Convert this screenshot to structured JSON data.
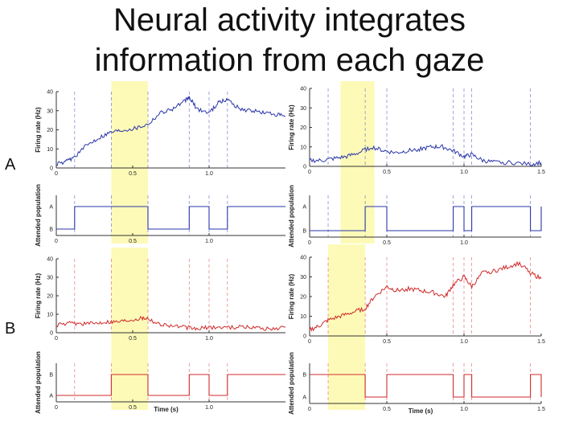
{
  "slide": {
    "title_line1": "Neural activity integrates",
    "title_line2": "information from each gaze",
    "row_labels": [
      "A",
      "B"
    ]
  },
  "colors": {
    "blue": "#2a35a8",
    "red": "#d02a2a",
    "highlight": "#fdfab8",
    "axis": "#333333"
  },
  "chart_data": [
    {
      "id": "A-left-rate",
      "type": "line",
      "series_color": "blue",
      "ylabel": "Firing rate (Hz)",
      "xlabel": "",
      "xlim": [
        0,
        1.5
      ],
      "ylim": [
        0,
        40
      ],
      "xticks": [
        "0",
        "0.5",
        "1.0"
      ],
      "xtick_values": [
        0,
        0.5,
        1.0
      ],
      "yticks": [
        "0",
        "10",
        "20",
        "30",
        "40"
      ],
      "ytick_values": [
        0,
        10,
        20,
        30,
        40
      ],
      "markers": [
        0.12,
        0.36,
        0.6,
        0.87,
        1.0,
        1.12
      ],
      "highlight": [
        0.36,
        0.6
      ],
      "series": [
        {
          "name": "rate",
          "x": [
            0.0,
            0.06,
            0.12,
            0.2,
            0.28,
            0.36,
            0.44,
            0.52,
            0.6,
            0.68,
            0.76,
            0.84,
            0.87,
            0.92,
            1.0,
            1.06,
            1.12,
            1.2,
            1.28,
            1.36,
            1.44,
            1.5
          ],
          "y": [
            2,
            3,
            6,
            12,
            16,
            19,
            20,
            21,
            23,
            29,
            31,
            35,
            37,
            31,
            29,
            34,
            36,
            31,
            30,
            29,
            28,
            27
          ]
        }
      ]
    },
    {
      "id": "A-left-pop",
      "type": "step",
      "series_color": "blue",
      "ylabel": "Attended population",
      "xlabel": "",
      "xlim": [
        0,
        1.5
      ],
      "yticks": [
        "A",
        "B"
      ],
      "xticks": [
        "0",
        "0.5",
        "1.0"
      ],
      "xtick_values": [
        0,
        0.5,
        1.0
      ],
      "markers": [
        0.12,
        0.36,
        0.6,
        0.87,
        1.0,
        1.12
      ],
      "highlight": [
        0.36,
        0.6
      ],
      "steps": {
        "x": [
          0.12,
          0.36,
          0.6,
          0.87,
          1.0,
          1.12,
          1.5
        ],
        "state": [
          "A",
          "A",
          "B",
          "A",
          "B",
          "A"
        ],
        "start": "B"
      }
    },
    {
      "id": "A-right-rate",
      "type": "line",
      "series_color": "blue",
      "ylabel": "Firing rate (Hz)",
      "xlabel": "",
      "xlim": [
        0,
        1.5
      ],
      "ylim": [
        0,
        40
      ],
      "xticks": [
        "0",
        "0.5",
        "1.0",
        "1.5"
      ],
      "xtick_values": [
        0,
        0.5,
        1.0,
        1.5
      ],
      "yticks": [
        "0",
        "10",
        "20",
        "30",
        "40"
      ],
      "ytick_values": [
        0,
        10,
        20,
        30,
        40
      ],
      "markers": [
        0.12,
        0.36,
        0.5,
        0.93,
        1.0,
        1.05,
        1.43
      ],
      "highlight": [
        0.2,
        0.42
      ],
      "series": [
        {
          "name": "rate",
          "x": [
            0.0,
            0.08,
            0.16,
            0.24,
            0.32,
            0.4,
            0.48,
            0.56,
            0.64,
            0.72,
            0.8,
            0.86,
            0.93,
            1.0,
            1.05,
            1.12,
            1.2,
            1.3,
            1.43,
            1.5
          ],
          "y": [
            3,
            3,
            4,
            5,
            7,
            10,
            8,
            7,
            8,
            9,
            10,
            10,
            8,
            5,
            6,
            3,
            2,
            2,
            1,
            2
          ]
        }
      ]
    },
    {
      "id": "A-right-pop",
      "type": "step",
      "series_color": "blue",
      "ylabel": "Attended population",
      "xlabel": "",
      "xlim": [
        0,
        1.5
      ],
      "yticks": [
        "A",
        "B"
      ],
      "xticks": [
        "0",
        "0.5",
        "1.0"
      ],
      "xtick_values": [
        0,
        0.5,
        1.0
      ],
      "markers": [
        0.12,
        0.36,
        0.5,
        0.93,
        1.0,
        1.05,
        1.43
      ],
      "highlight": [
        0.2,
        0.42
      ],
      "steps": {
        "x": [
          0.0,
          0.36,
          0.5,
          0.93,
          1.0,
          1.05,
          1.43,
          1.5
        ],
        "state": [
          "B",
          "A",
          "B",
          "A",
          "B",
          "A",
          "B",
          "A"
        ],
        "start": "B"
      }
    },
    {
      "id": "B-left-rate",
      "type": "line",
      "series_color": "red",
      "ylabel": "Firing rate (Hz)",
      "xlabel": "",
      "xlim": [
        0,
        1.5
      ],
      "ylim": [
        0,
        40
      ],
      "xticks": [
        "0",
        "0.5",
        "1.0"
      ],
      "xtick_values": [
        0,
        0.5,
        1.0
      ],
      "yticks": [
        "0",
        "10",
        "20",
        "30",
        "40"
      ],
      "ytick_values": [
        0,
        10,
        20,
        30,
        40
      ],
      "markers": [
        0.12,
        0.36,
        0.6,
        0.87,
        1.0,
        1.12
      ],
      "highlight": [
        0.36,
        0.6
      ],
      "series": [
        {
          "name": "rate",
          "x": [
            0.0,
            0.08,
            0.16,
            0.24,
            0.32,
            0.4,
            0.48,
            0.56,
            0.6,
            0.66,
            0.74,
            0.84,
            0.92,
            1.0,
            1.1,
            1.2,
            1.3,
            1.4,
            1.5
          ],
          "y": [
            4,
            5,
            5,
            5,
            6,
            6,
            7,
            8,
            8,
            5,
            4,
            3,
            2,
            3,
            3,
            3,
            3,
            2,
            3
          ]
        }
      ]
    },
    {
      "id": "B-left-pop",
      "type": "step",
      "series_color": "red",
      "ylabel": "Attended population",
      "xlabel": "Time (s)",
      "xlim": [
        0,
        1.5
      ],
      "yticks": [
        "B",
        "A"
      ],
      "xticks": [
        "0",
        "0.5",
        "1.0"
      ],
      "xtick_values": [
        0,
        0.5,
        1.0
      ],
      "markers": [
        0.12,
        0.36,
        0.6,
        0.87,
        1.0,
        1.12
      ],
      "highlight": [
        0.36,
        0.6
      ],
      "steps": {
        "x": [
          0.12,
          0.36,
          0.6,
          0.87,
          1.0,
          1.12,
          1.5
        ],
        "state": [
          "A",
          "B",
          "A",
          "B",
          "A",
          "B"
        ],
        "start": "A"
      }
    },
    {
      "id": "B-right-rate",
      "type": "line",
      "series_color": "red",
      "ylabel": "Firing rate (Hz)",
      "xlabel": "",
      "xlim": [
        0,
        1.5
      ],
      "ylim": [
        0,
        40
      ],
      "xticks": [
        "0",
        "0.5",
        "1.0",
        "1.5"
      ],
      "xtick_values": [
        0,
        0.5,
        1.0,
        1.5
      ],
      "yticks": [
        "0",
        "10",
        "20",
        "30",
        "40"
      ],
      "ytick_values": [
        0,
        10,
        20,
        30,
        40
      ],
      "markers": [
        0.12,
        0.36,
        0.5,
        0.93,
        1.0,
        1.05,
        1.43
      ],
      "highlight": [
        0.12,
        0.36
      ],
      "series": [
        {
          "name": "rate",
          "x": [
            0.0,
            0.06,
            0.12,
            0.2,
            0.28,
            0.36,
            0.42,
            0.5,
            0.56,
            0.64,
            0.72,
            0.8,
            0.88,
            0.93,
            1.0,
            1.05,
            1.12,
            1.2,
            1.28,
            1.36,
            1.43,
            1.5
          ],
          "y": [
            3,
            5,
            8,
            10,
            12,
            14,
            20,
            25,
            23,
            24,
            23,
            22,
            20,
            26,
            30,
            25,
            32,
            33,
            35,
            37,
            32,
            29
          ]
        }
      ]
    },
    {
      "id": "B-right-pop",
      "type": "step",
      "series_color": "red",
      "ylabel": "Attended population",
      "xlabel": "Time (s)",
      "xlim": [
        0,
        1.5
      ],
      "yticks": [
        "B",
        "A"
      ],
      "xticks": [
        "0",
        "0.5",
        "1.0",
        "1.5"
      ],
      "xtick_values": [
        0,
        0.5,
        1.0,
        1.5
      ],
      "markers": [
        0.12,
        0.36,
        0.5,
        0.93,
        1.0,
        1.05,
        1.43
      ],
      "highlight": [
        0.12,
        0.36
      ],
      "steps": {
        "x": [
          0.0,
          0.36,
          0.5,
          0.93,
          1.0,
          1.05,
          1.43,
          1.5
        ],
        "state": [
          "B",
          "A",
          "B",
          "A",
          "B",
          "A",
          "B",
          "A"
        ],
        "start": "B"
      }
    }
  ]
}
